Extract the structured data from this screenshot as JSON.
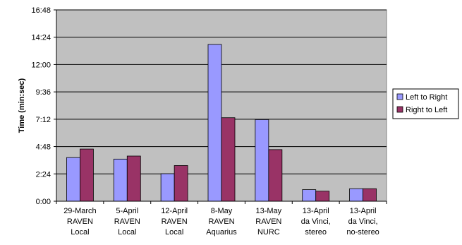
{
  "chart_data": {
    "type": "bar",
    "title": "",
    "xlabel": "",
    "ylabel": "Time (min:sec)",
    "y_unit": "seconds",
    "ylim": [
      0,
      1008
    ],
    "y_ticks": [
      {
        "value": 0,
        "label": "0:00"
      },
      {
        "value": 144,
        "label": "2:24"
      },
      {
        "value": 288,
        "label": "4:48"
      },
      {
        "value": 432,
        "label": "7:12"
      },
      {
        "value": 576,
        "label": "9:36"
      },
      {
        "value": 720,
        "label": "12:00"
      },
      {
        "value": 864,
        "label": "14:24"
      },
      {
        "value": 1008,
        "label": "16:48"
      }
    ],
    "grid": true,
    "legend_position": "right",
    "categories": [
      [
        "29-March",
        "RAVEN",
        "Local"
      ],
      [
        "5-April",
        "RAVEN",
        "Local"
      ],
      [
        "12-April",
        "RAVEN",
        "Local"
      ],
      [
        "8-May",
        "RAVEN",
        "Aquarius"
      ],
      [
        "13-May",
        "RAVEN",
        "NURC"
      ],
      [
        "13-April",
        "da Vinci,",
        "stereo"
      ],
      [
        "13-April",
        "da Vinci,",
        "no-stereo"
      ]
    ],
    "series": [
      {
        "name": "Left to Right",
        "color": "#9999ff",
        "values": [
          230,
          222,
          145,
          826,
          430,
          61,
          66
        ]
      },
      {
        "name": "Right to Left",
        "color": "#993366",
        "values": [
          275,
          238,
          188,
          440,
          272,
          53,
          66
        ]
      }
    ],
    "colors": {
      "plot_bg": "#c0c0c0",
      "grid": "#000000",
      "bar_stroke": "#000000"
    }
  }
}
